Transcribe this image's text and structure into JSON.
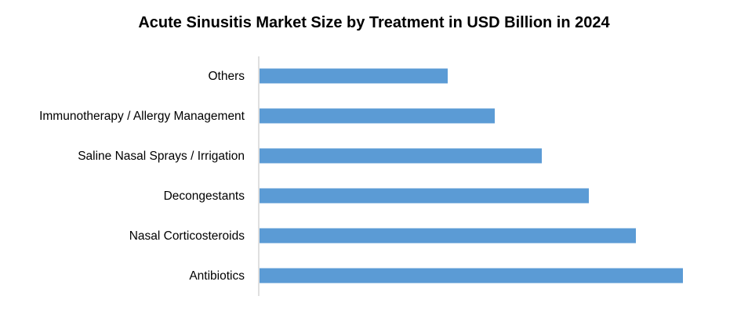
{
  "chart_data": {
    "type": "bar",
    "orientation": "horizontal",
    "title": "Acute Sinusitis Market Size by Treatment in USD Billion in 2024",
    "xlabel": "",
    "ylabel": "",
    "categories": [
      "Others",
      "Immunotherapy / Allergy Management",
      "Saline Nasal Sprays / Irrigation",
      "Decongestants",
      "Nasal Corticosteroids",
      "Antibiotics"
    ],
    "values": [
      4.0,
      5.0,
      6.0,
      7.0,
      8.0,
      9.0
    ],
    "xlim": [
      0,
      9.0
    ],
    "grid": false,
    "legend": "none",
    "bar_color": "#5b9bd5",
    "axis_color": "#bfbfbf"
  }
}
